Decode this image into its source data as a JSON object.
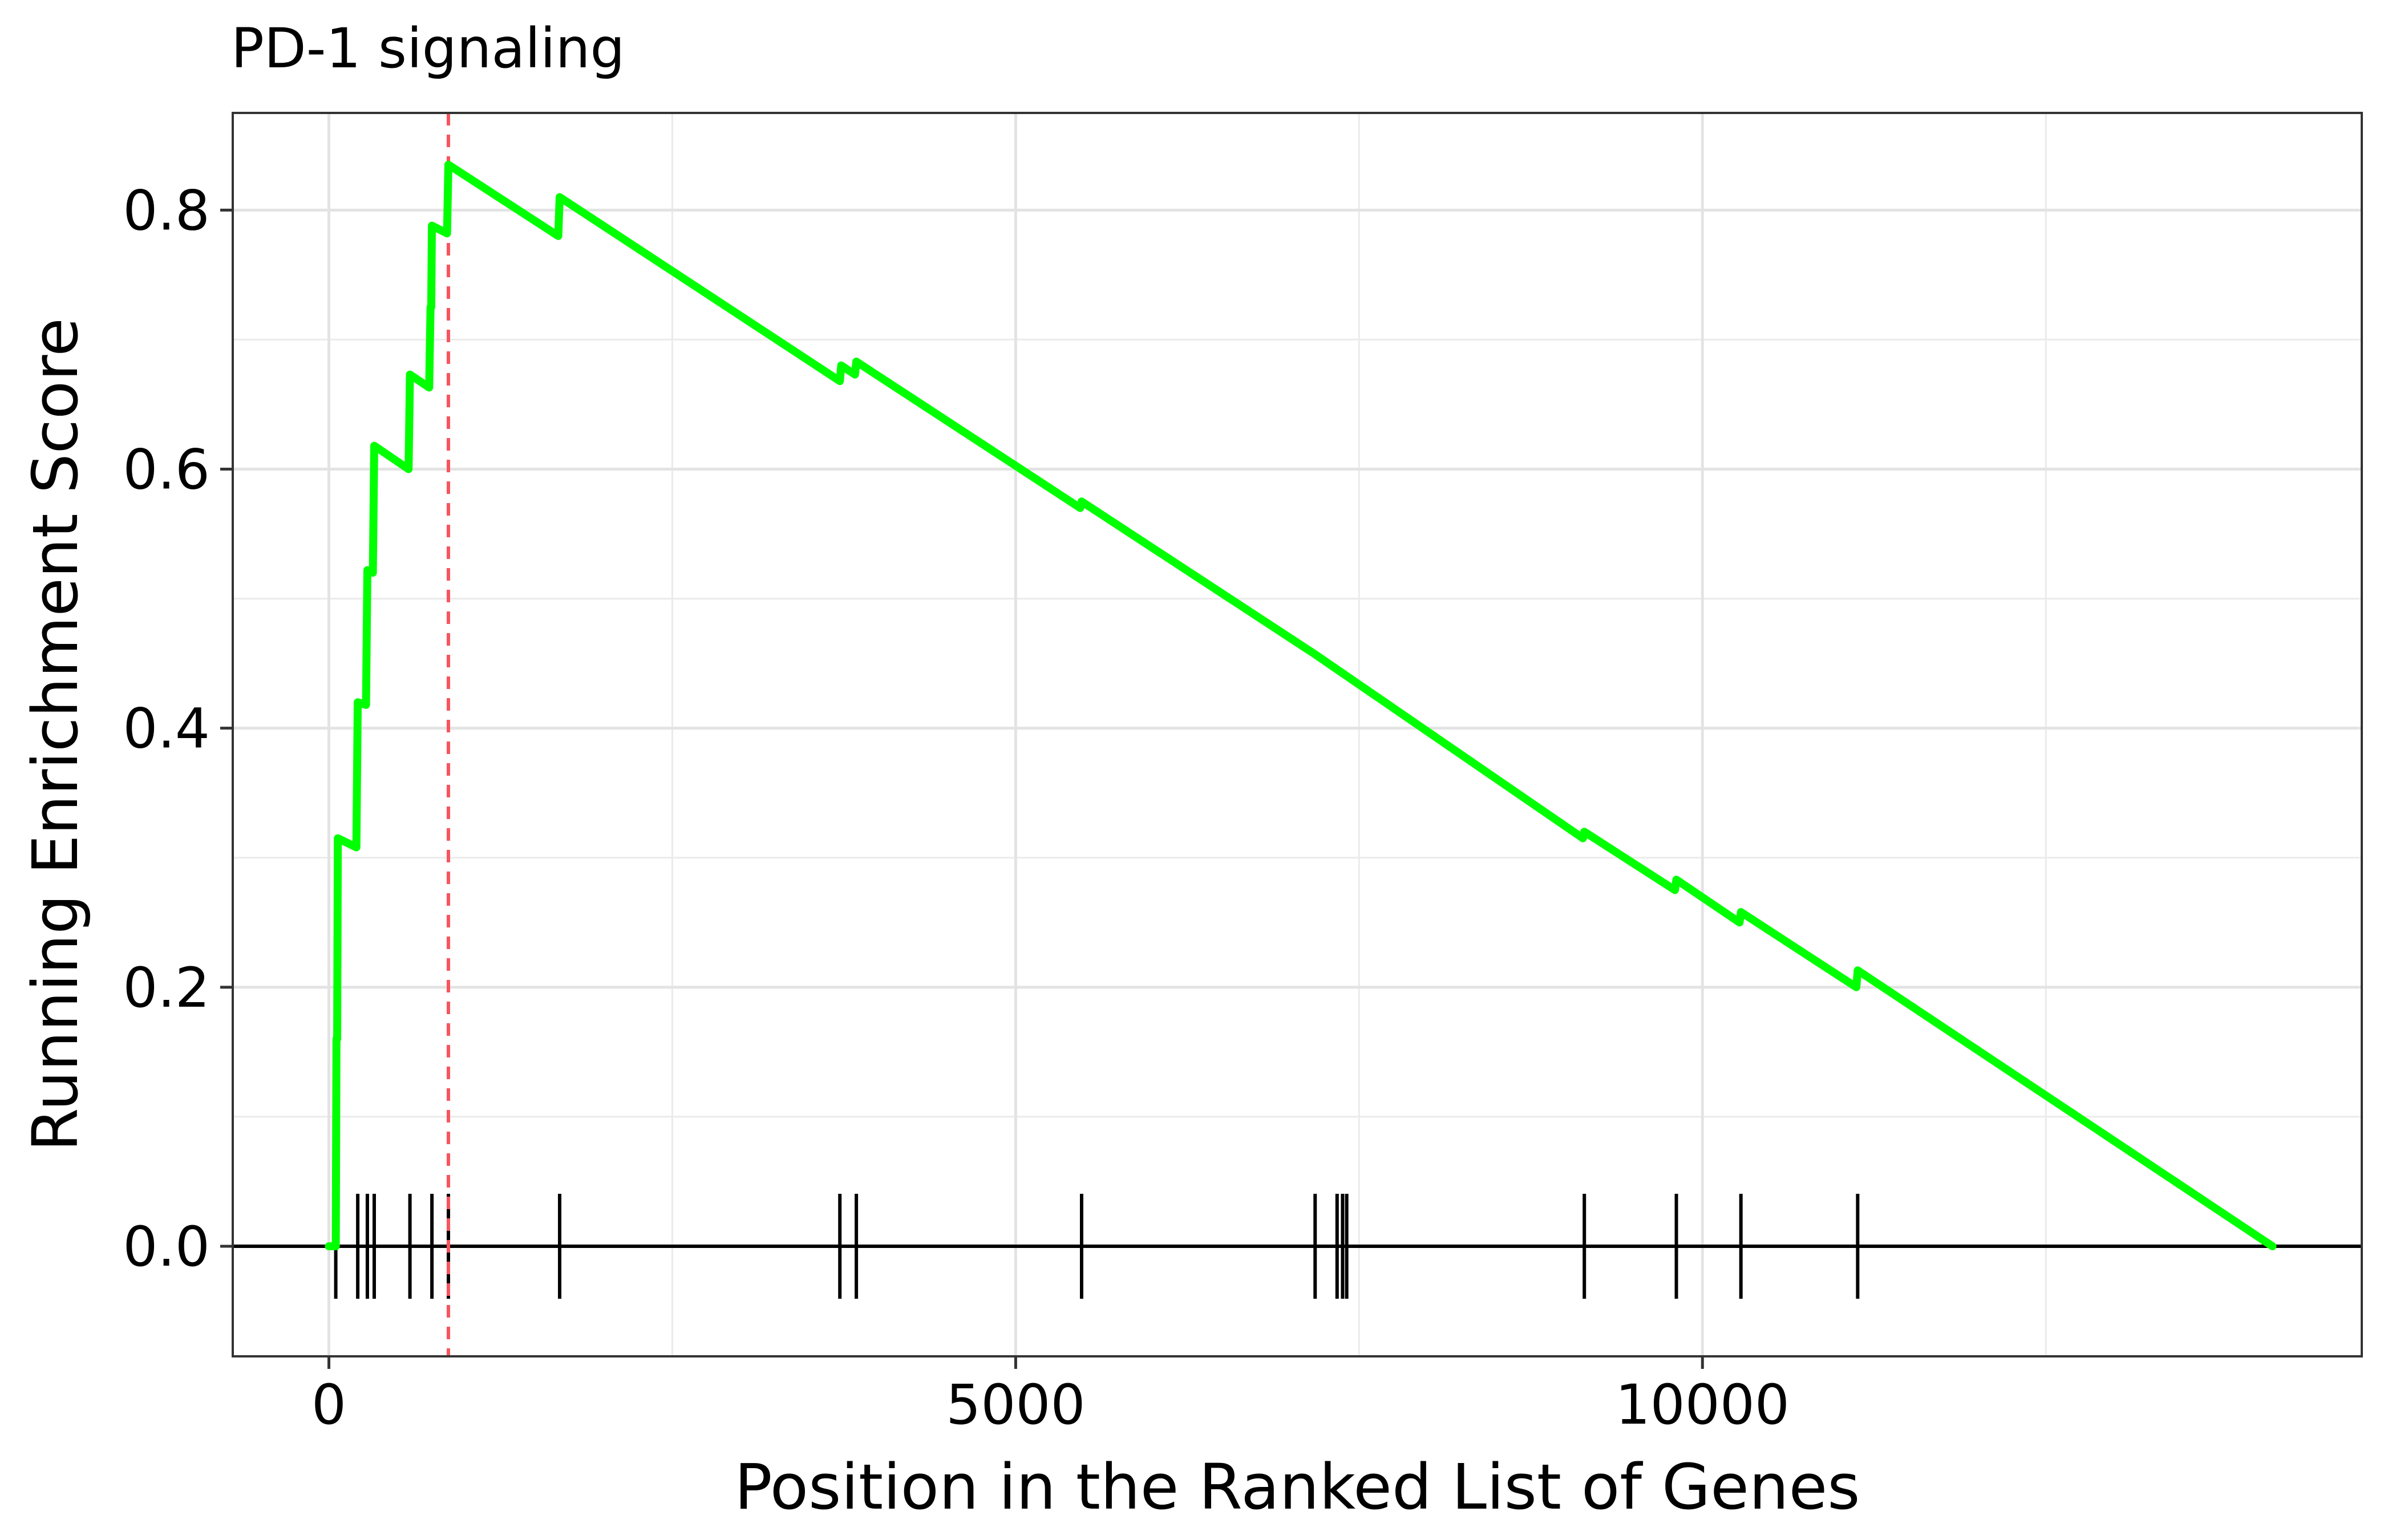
{
  "chart_data": {
    "type": "line",
    "title": "PD-1 signaling",
    "xlabel": "Position in the Ranked List of Genes",
    "ylabel": "Running Enrichment Score",
    "xlim": [
      -700,
      14800
    ],
    "ylim": [
      -0.085,
      0.875
    ],
    "x_ticks": [
      0,
      5000,
      10000
    ],
    "x_tick_labels": [
      "0",
      "5000",
      "10000"
    ],
    "x_minor_ticks": [
      2500,
      7500,
      12500
    ],
    "y_ticks": [
      0.0,
      0.2,
      0.4,
      0.6,
      0.8
    ],
    "y_tick_labels": [
      "0.0",
      "0.2",
      "0.4",
      "0.6",
      "0.8"
    ],
    "y_minor_ticks": [
      0.1,
      0.3,
      0.5,
      0.7
    ],
    "grid": true,
    "series": [
      {
        "color": "#00ff00",
        "points": [
          [
            0,
            0.0
          ],
          [
            50,
            0.0
          ],
          [
            55,
            0.16
          ],
          [
            60,
            0.16
          ],
          [
            65,
            0.315
          ],
          [
            200,
            0.308
          ],
          [
            210,
            0.42
          ],
          [
            270,
            0.418
          ],
          [
            280,
            0.522
          ],
          [
            320,
            0.52
          ],
          [
            330,
            0.618
          ],
          [
            580,
            0.6
          ],
          [
            590,
            0.673
          ],
          [
            730,
            0.663
          ],
          [
            740,
            0.725
          ],
          [
            745,
            0.725
          ],
          [
            750,
            0.788
          ],
          [
            860,
            0.782
          ],
          [
            870,
            0.835
          ],
          [
            1670,
            0.78
          ],
          [
            1680,
            0.81
          ],
          [
            3720,
            0.668
          ],
          [
            3730,
            0.68
          ],
          [
            3830,
            0.673
          ],
          [
            3840,
            0.683
          ],
          [
            5470,
            0.57
          ],
          [
            5480,
            0.575
          ],
          [
            7180,
            0.457
          ],
          [
            9130,
            0.315
          ],
          [
            9140,
            0.32
          ],
          [
            9800,
            0.275
          ],
          [
            9810,
            0.283
          ],
          [
            10270,
            0.25
          ],
          [
            10280,
            0.258
          ],
          [
            11120,
            0.2
          ],
          [
            11130,
            0.213
          ],
          [
            14150,
            0.0
          ]
        ]
      }
    ],
    "gene_hits": [
      50,
      210,
      280,
      330,
      590,
      750,
      870,
      1680,
      3720,
      3840,
      5480,
      7180,
      7340,
      7380,
      7410,
      9140,
      9810,
      10280,
      11130
    ],
    "enrichment_peak_x": 870,
    "peak_line_color": "#f8545e",
    "hit_color": "#000000"
  }
}
